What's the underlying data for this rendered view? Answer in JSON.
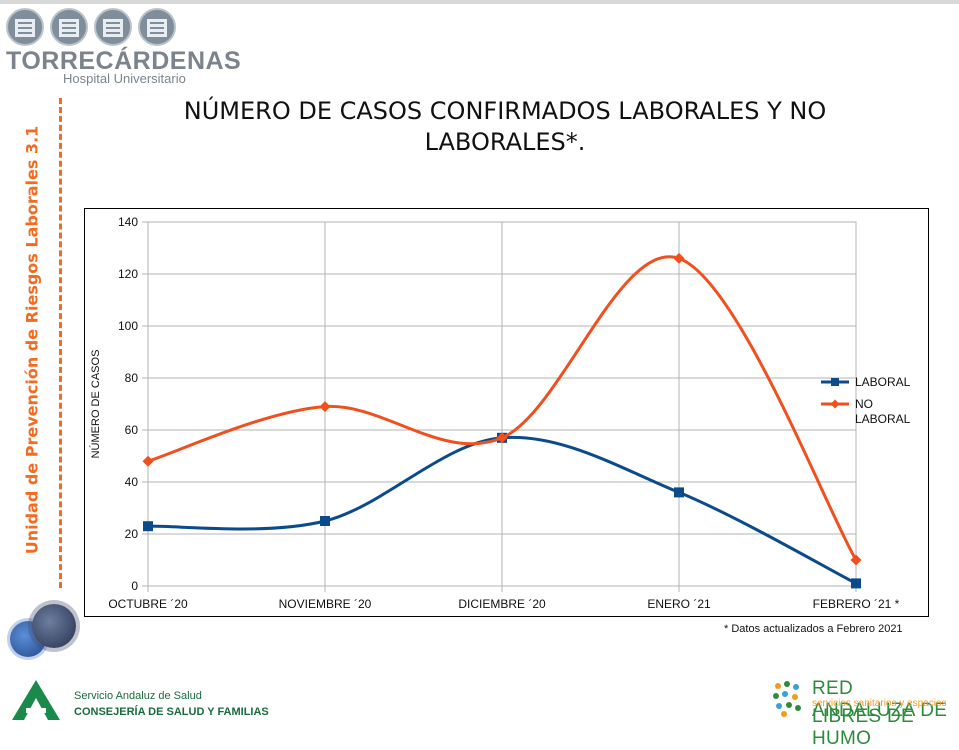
{
  "logo": {
    "name": "TORRECÁRDENAS",
    "subtitle": "Hospital Universitario"
  },
  "side_label": "Unidad de Prevención de Riesgos Laborales  3.1",
  "title_line1": "NÚMERO DE CASOS CONFIRMADOS LABORALES Y NO",
  "title_line2": "LABORALES*.",
  "footnote": "* Datos actualizados a Febrero 2021",
  "footer": {
    "sas_line1": "Servicio Andaluz de Salud",
    "sas_line2": "CONSEJERÍA DE SALUD Y FAMILIAS",
    "red_line1": "RED ANDALUZA DE",
    "red_line2": "servicios sanitarios y espacios",
    "red_line3": "LIBRES DE HUMO"
  },
  "chart_data": {
    "type": "line",
    "title": "",
    "xlabel": "",
    "ylabel": "NÚMERO DE CASOS",
    "categories": [
      "OCTUBRE ´20",
      "NOVIEMBRE ´20",
      "DICIEMBRE ´20",
      "ENERO ´21",
      "FEBRERO ´21 *"
    ],
    "ylim": [
      0,
      140
    ],
    "yticks": [
      0,
      20,
      40,
      60,
      80,
      100,
      120,
      140
    ],
    "grid": true,
    "legend": "right",
    "smooth": true,
    "series": [
      {
        "name": "LABORAL",
        "values": [
          23,
          25,
          57,
          36,
          1
        ],
        "color": "#0b4a8b",
        "marker": "square"
      },
      {
        "name": "NO LABORAL",
        "values": [
          48,
          69,
          57,
          126,
          10
        ],
        "color": "#f0501e",
        "marker": "diamond"
      }
    ]
  }
}
